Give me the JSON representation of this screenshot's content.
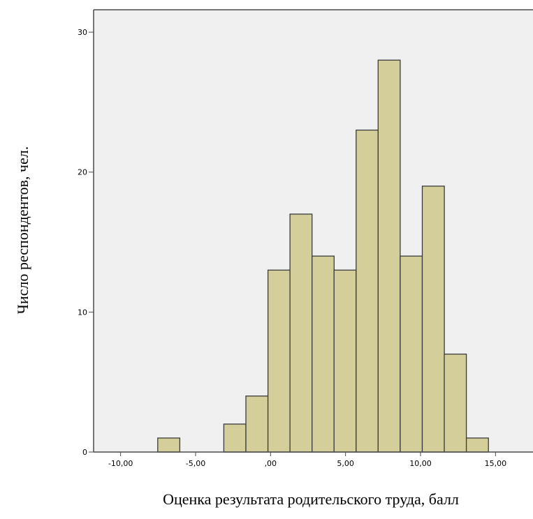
{
  "chart_data": {
    "type": "bar",
    "subtype": "histogram",
    "xlabel": "Оценка результата родительского труда, балл",
    "ylabel": "Число респондентов, чел.",
    "xlim": [
      -11.8,
      17.5
    ],
    "ylim": [
      0,
      31.6
    ],
    "bin_width": 1.47,
    "bins": [
      {
        "x": -6.79,
        "value": 1
      },
      {
        "x": -2.38,
        "value": 2
      },
      {
        "x": -0.91,
        "value": 4
      },
      {
        "x": 0.56,
        "value": 13
      },
      {
        "x": 2.03,
        "value": 17
      },
      {
        "x": 3.5,
        "value": 14
      },
      {
        "x": 4.97,
        "value": 13
      },
      {
        "x": 6.44,
        "value": 23
      },
      {
        "x": 7.91,
        "value": 28
      },
      {
        "x": 9.38,
        "value": 14
      },
      {
        "x": 10.85,
        "value": 19
      },
      {
        "x": 12.32,
        "value": 7
      },
      {
        "x": 13.79,
        "value": 1
      }
    ],
    "x_ticks": [
      {
        "value": -10,
        "label": "-10,00"
      },
      {
        "value": -5,
        "label": "-5,00"
      },
      {
        "value": 0,
        "label": ",00"
      },
      {
        "value": 5,
        "label": "5,00"
      },
      {
        "value": 10,
        "label": "10,00"
      },
      {
        "value": 15,
        "label": "15,00"
      }
    ],
    "y_ticks": [
      {
        "value": 0,
        "label": "0"
      },
      {
        "value": 10,
        "label": "10"
      },
      {
        "value": 20,
        "label": "20"
      },
      {
        "value": 30,
        "label": "30"
      }
    ],
    "grid": false,
    "colors": {
      "plot_background": "#f0f0f0",
      "bar_fill": "#d3ce9a",
      "bar_stroke": "#3b3b3b",
      "axis": "#4a4a4a"
    }
  }
}
